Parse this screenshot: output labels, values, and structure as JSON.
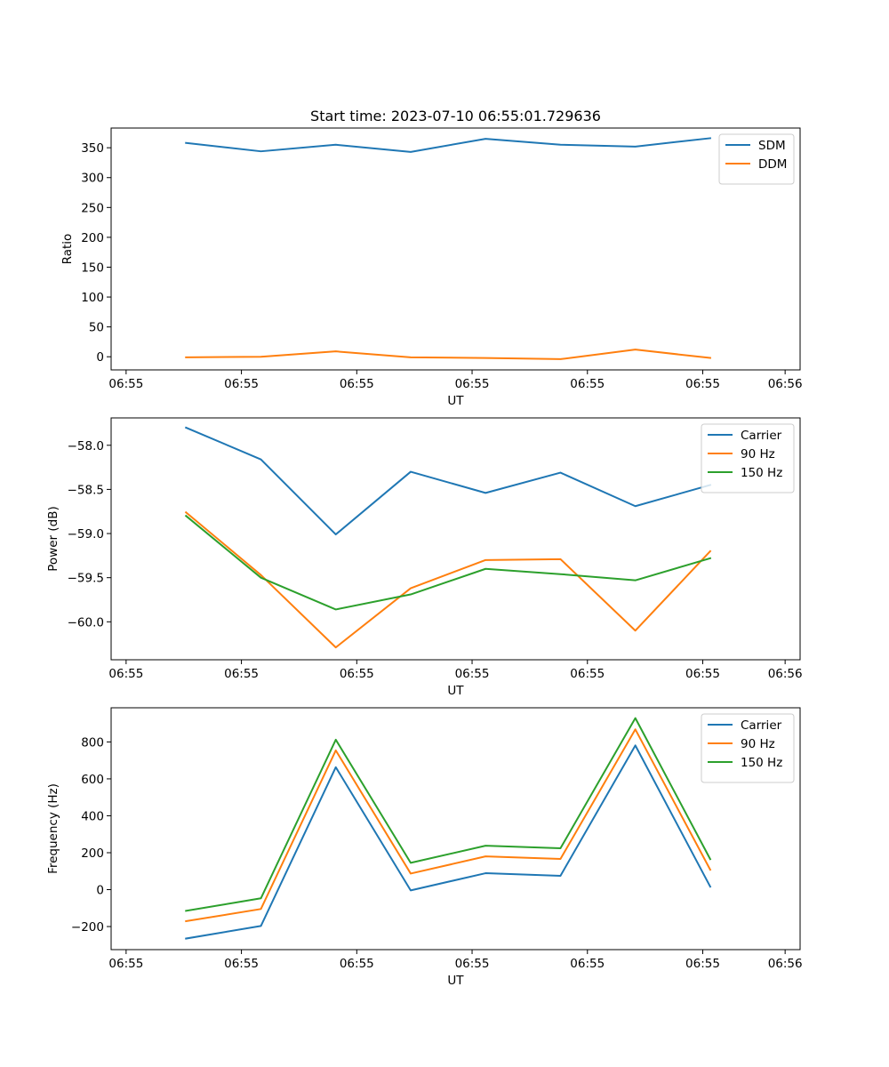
{
  "figure": {
    "title": "Start time: 2023-07-10 06:55:01.729636"
  },
  "chart_data": [
    {
      "type": "line",
      "title": "Start time: 2023-07-10 06:55:01.729636",
      "xlabel": "UT",
      "ylabel": "Ratio",
      "x": [
        1,
        2,
        3,
        4,
        5,
        6,
        7,
        8
      ],
      "xlim": [
        0,
        9.2
      ],
      "ylim": [
        -22,
        383
      ],
      "x_ticks": [
        0.2,
        1.74,
        3.28,
        4.82,
        6.36,
        7.9,
        9.0
      ],
      "x_tick_labels": [
        "06:55",
        "06:55",
        "06:55",
        "06:55",
        "06:55",
        "06:55",
        "06:56"
      ],
      "y_ticks": [
        0,
        50,
        100,
        150,
        200,
        250,
        300,
        350
      ],
      "y_tick_labels": [
        "0",
        "50",
        "100",
        "150",
        "200",
        "250",
        "300",
        "350"
      ],
      "legend_position": "top-right",
      "series": [
        {
          "name": "SDM",
          "color": "#1f77b4",
          "values": [
            358,
            344,
            355,
            343,
            365,
            355,
            352,
            366
          ]
        },
        {
          "name": "DDM",
          "color": "#ff7f0e",
          "values": [
            -1,
            0,
            9,
            -1,
            -2,
            -4,
            12,
            -2
          ]
        }
      ]
    },
    {
      "type": "line",
      "title": "",
      "xlabel": "UT",
      "ylabel": "Power (dB)",
      "x": [
        1,
        2,
        3,
        4,
        5,
        6,
        7,
        8
      ],
      "xlim": [
        0,
        9.2
      ],
      "ylim": [
        -60.43,
        -57.69
      ],
      "x_ticks": [
        0.2,
        1.74,
        3.28,
        4.82,
        6.36,
        7.9,
        9.0
      ],
      "x_tick_labels": [
        "06:55",
        "06:55",
        "06:55",
        "06:55",
        "06:55",
        "06:55",
        "06:56"
      ],
      "y_ticks": [
        -60.0,
        -59.5,
        -59.0,
        -58.5,
        -58.0
      ],
      "y_tick_labels": [
        "−60.0",
        "−59.5",
        "−59.0",
        "−58.5",
        "−58.0"
      ],
      "legend_position": "top-right",
      "series": [
        {
          "name": "Carrier",
          "color": "#1f77b4",
          "values": [
            -57.8,
            -58.16,
            -59.01,
            -58.3,
            -58.54,
            -58.31,
            -58.69,
            -58.45
          ]
        },
        {
          "name": "90 Hz",
          "color": "#ff7f0e",
          "values": [
            -58.76,
            -59.47,
            -60.29,
            -59.62,
            -59.3,
            -59.29,
            -60.1,
            -59.2
          ]
        },
        {
          "name": "150 Hz",
          "color": "#2ca02c",
          "values": [
            -58.8,
            -59.5,
            -59.86,
            -59.69,
            -59.4,
            -59.46,
            -59.53,
            -59.28
          ]
        }
      ]
    },
    {
      "type": "line",
      "title": "",
      "xlabel": "UT",
      "ylabel": "Frequency (Hz)",
      "x": [
        1,
        2,
        3,
        4,
        5,
        6,
        7,
        8
      ],
      "xlim": [
        0,
        9.2
      ],
      "ylim": [
        -325,
        985
      ],
      "x_ticks": [
        0.2,
        1.74,
        3.28,
        4.82,
        6.36,
        7.9,
        9.0
      ],
      "x_tick_labels": [
        "06:55",
        "06:55",
        "06:55",
        "06:55",
        "06:55",
        "06:55",
        "06:56"
      ],
      "y_ticks": [
        -200,
        0,
        200,
        400,
        600,
        800
      ],
      "y_tick_labels": [
        "−200",
        "0",
        "200",
        "400",
        "600",
        "800"
      ],
      "legend_position": "top-right",
      "series": [
        {
          "name": "Carrier",
          "color": "#1f77b4",
          "values": [
            -265,
            -197,
            663,
            -4,
            89,
            75,
            781,
            16
          ]
        },
        {
          "name": "90 Hz",
          "color": "#ff7f0e",
          "values": [
            -171,
            -105,
            754,
            87,
            180,
            166,
            868,
            108
          ]
        },
        {
          "name": "150 Hz",
          "color": "#2ca02c",
          "values": [
            -115,
            -47,
            812,
            145,
            238,
            224,
            929,
            165
          ]
        }
      ]
    }
  ]
}
